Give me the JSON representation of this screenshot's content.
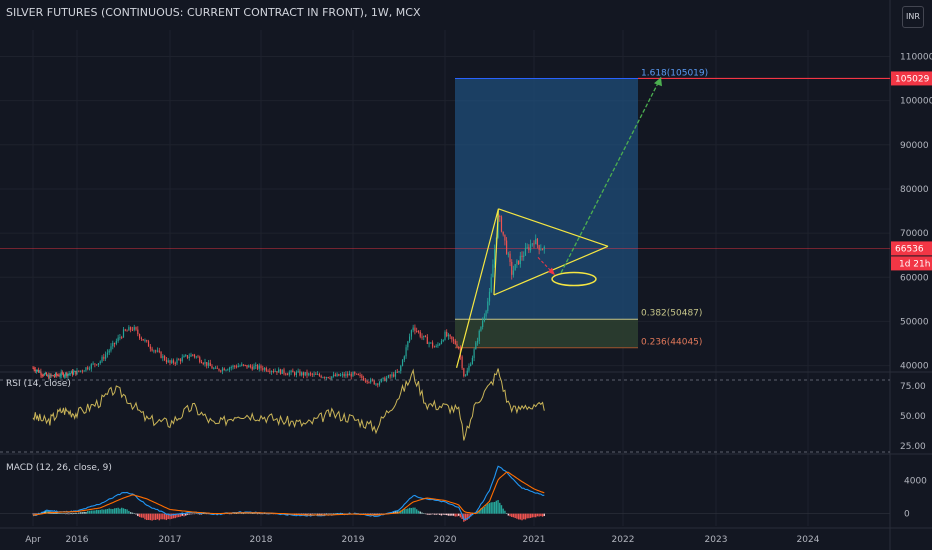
{
  "header": {
    "title": "SILVER FUTURES (CONTINUOUS: CURRENT CONTRACT IN FRONT), 1W, MCX",
    "currency": "INR"
  },
  "colors": {
    "background": "#131722",
    "grid": "#1e222d",
    "axis_text": "#b2b5be",
    "up": "#26a69a",
    "down": "#ef5350",
    "fib_zone": "#1f4e79",
    "fib_lower_zone": "#2c3e30",
    "fib_top_line": "#2962ff",
    "target_line": "#f23645",
    "drawing_yellow": "#f5e642",
    "projection_green": "#4caf50",
    "rsi_line": "#c9b458",
    "macd_line": "#2196f3",
    "signal_line": "#ff6d00",
    "last_price_bg": "#f23645"
  },
  "chart_data": [
    {
      "type": "candlestick",
      "pane": "price",
      "ylim": [
        39000,
        116000
      ],
      "y_ticks": [
        40000,
        50000,
        60000,
        70000,
        80000,
        90000,
        100000,
        110000
      ],
      "x_ticks": [
        "Apr",
        "2016",
        "2017",
        "2018",
        "2019",
        "2020",
        "2021",
        "2022",
        "2023",
        "2024"
      ],
      "x_tick_dates": [
        2015.25,
        2016,
        2017,
        2018,
        2019,
        2020,
        2021,
        2022,
        2023,
        2024
      ],
      "price_path": [
        [
          2015.25,
          39500
        ],
        [
          2015.5,
          37500
        ],
        [
          2015.75,
          38000
        ],
        [
          2016.0,
          38500
        ],
        [
          2016.25,
          41000
        ],
        [
          2016.5,
          47500
        ],
        [
          2016.6,
          48500
        ],
        [
          2016.75,
          45000
        ],
        [
          2017.0,
          40500
        ],
        [
          2017.25,
          42500
        ],
        [
          2017.5,
          39000
        ],
        [
          2017.75,
          40000
        ],
        [
          2018.0,
          39500
        ],
        [
          2018.25,
          38500
        ],
        [
          2018.5,
          38000
        ],
        [
          2018.75,
          37500
        ],
        [
          2019.0,
          38000
        ],
        [
          2019.25,
          36000
        ],
        [
          2019.5,
          38500
        ],
        [
          2019.65,
          49000
        ],
        [
          2019.75,
          46500
        ],
        [
          2019.9,
          44000
        ],
        [
          2020.0,
          47000
        ],
        [
          2020.15,
          44500
        ],
        [
          2020.22,
          37000
        ],
        [
          2020.3,
          41500
        ],
        [
          2020.4,
          48500
        ],
        [
          2020.5,
          56000
        ],
        [
          2020.6,
          74000
        ],
        [
          2020.65,
          70000
        ],
        [
          2020.75,
          61000
        ],
        [
          2020.85,
          64500
        ],
        [
          2020.95,
          67000
        ],
        [
          2021.0,
          68500
        ],
        [
          2021.05,
          67000
        ],
        [
          2021.12,
          66536
        ]
      ],
      "levels": [
        {
          "label": "1.618(105019)",
          "value": 105019
        },
        {
          "label": "0.382(50487)",
          "value": 50487
        },
        {
          "label": "0.236(44045)",
          "value": 44045
        }
      ],
      "target_price": {
        "label": "105029",
        "value": 105029
      },
      "last_price": {
        "label": "66536",
        "value": 66536,
        "countdown": "1d 21h"
      }
    },
    {
      "type": "line",
      "pane": "rsi",
      "legend": "RSI (14, close)",
      "ylim": [
        20,
        85
      ],
      "y_ticks": [
        25.0,
        50.0,
        75.0
      ],
      "bands": [
        80,
        20
      ],
      "points": [
        [
          2015.25,
          50
        ],
        [
          2015.5,
          45
        ],
        [
          2015.75,
          55
        ],
        [
          2016.0,
          52
        ],
        [
          2016.25,
          62
        ],
        [
          2016.4,
          72
        ],
        [
          2016.5,
          68
        ],
        [
          2016.75,
          47
        ],
        [
          2017.0,
          44
        ],
        [
          2017.25,
          58
        ],
        [
          2017.5,
          42
        ],
        [
          2017.75,
          52
        ],
        [
          2018.0,
          50
        ],
        [
          2018.25,
          46
        ],
        [
          2018.5,
          43
        ],
        [
          2018.75,
          52
        ],
        [
          2019.0,
          48
        ],
        [
          2019.25,
          40
        ],
        [
          2019.6,
          78
        ],
        [
          2019.65,
          86
        ],
        [
          2019.8,
          60
        ],
        [
          2020.0,
          58
        ],
        [
          2020.15,
          55
        ],
        [
          2020.22,
          30
        ],
        [
          2020.35,
          62
        ],
        [
          2020.5,
          75
        ],
        [
          2020.6,
          88
        ],
        [
          2020.7,
          62
        ],
        [
          2020.8,
          54
        ],
        [
          2020.9,
          60
        ],
        [
          2021.0,
          56
        ],
        [
          2021.12,
          58
        ]
      ]
    },
    {
      "type": "bar+line",
      "pane": "macd",
      "legend": "MACD (12, 26, close, 9)",
      "ylim": [
        -1500,
        7000
      ],
      "y_ticks": [
        0,
        4000
      ],
      "macd": [
        [
          2015.25,
          -300
        ],
        [
          2015.5,
          400
        ],
        [
          2015.75,
          200
        ],
        [
          2016.0,
          300
        ],
        [
          2016.25,
          1200
        ],
        [
          2016.5,
          2600
        ],
        [
          2016.6,
          2400
        ],
        [
          2016.75,
          1000
        ],
        [
          2017.0,
          -200
        ],
        [
          2017.25,
          200
        ],
        [
          2017.5,
          -100
        ],
        [
          2017.75,
          200
        ],
        [
          2018.0,
          100
        ],
        [
          2018.25,
          -100
        ],
        [
          2018.5,
          -250
        ],
        [
          2018.75,
          -150
        ],
        [
          2019.0,
          0
        ],
        [
          2019.25,
          -300
        ],
        [
          2019.5,
          400
        ],
        [
          2019.65,
          2200
        ],
        [
          2019.8,
          1800
        ],
        [
          2020.0,
          1400
        ],
        [
          2020.15,
          800
        ],
        [
          2020.22,
          -800
        ],
        [
          2020.35,
          200
        ],
        [
          2020.5,
          2800
        ],
        [
          2020.6,
          5800
        ],
        [
          2020.7,
          5000
        ],
        [
          2020.85,
          3200
        ],
        [
          2021.0,
          2600
        ],
        [
          2021.12,
          2200
        ]
      ],
      "signal": [
        [
          2015.25,
          -200
        ],
        [
          2015.5,
          100
        ],
        [
          2015.75,
          200
        ],
        [
          2016.0,
          250
        ],
        [
          2016.25,
          700
        ],
        [
          2016.5,
          1900
        ],
        [
          2016.6,
          2300
        ],
        [
          2016.75,
          1800
        ],
        [
          2017.0,
          500
        ],
        [
          2017.25,
          200
        ],
        [
          2017.5,
          0
        ],
        [
          2017.75,
          100
        ],
        [
          2018.0,
          100
        ],
        [
          2018.25,
          0
        ],
        [
          2018.5,
          -150
        ],
        [
          2018.75,
          -150
        ],
        [
          2019.0,
          -50
        ],
        [
          2019.25,
          -150
        ],
        [
          2019.5,
          100
        ],
        [
          2019.65,
          1400
        ],
        [
          2019.8,
          1900
        ],
        [
          2020.0,
          1600
        ],
        [
          2020.15,
          1100
        ],
        [
          2020.22,
          200
        ],
        [
          2020.35,
          0
        ],
        [
          2020.5,
          1500
        ],
        [
          2020.6,
          4200
        ],
        [
          2020.7,
          5100
        ],
        [
          2020.85,
          4000
        ],
        [
          2021.0,
          3000
        ],
        [
          2021.12,
          2500
        ]
      ]
    }
  ]
}
